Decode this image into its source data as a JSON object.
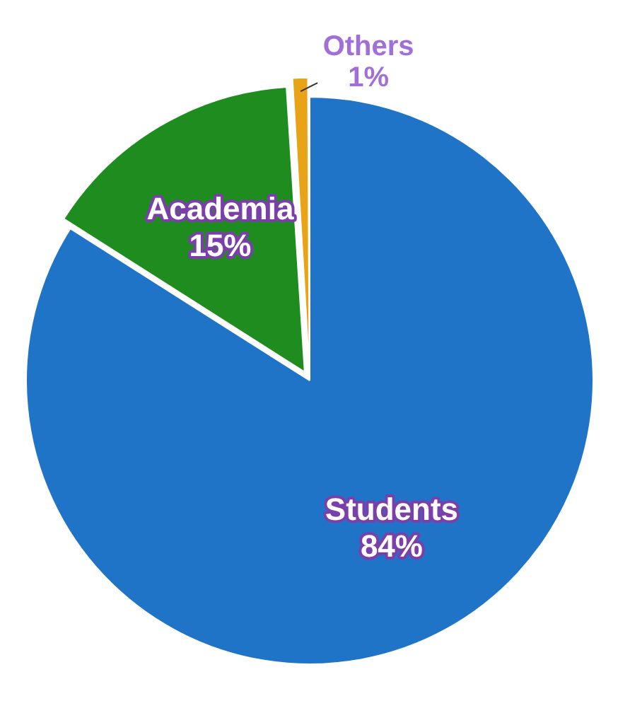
{
  "chart_data": {
    "type": "pie",
    "categories": [
      "Students",
      "Academia",
      "Others"
    ],
    "values": [
      84,
      15,
      1
    ],
    "colors": [
      "#1f74c8",
      "#1e8c1e",
      "#e8a317"
    ],
    "value_labels": [
      "84%",
      "15%",
      "1%"
    ]
  }
}
